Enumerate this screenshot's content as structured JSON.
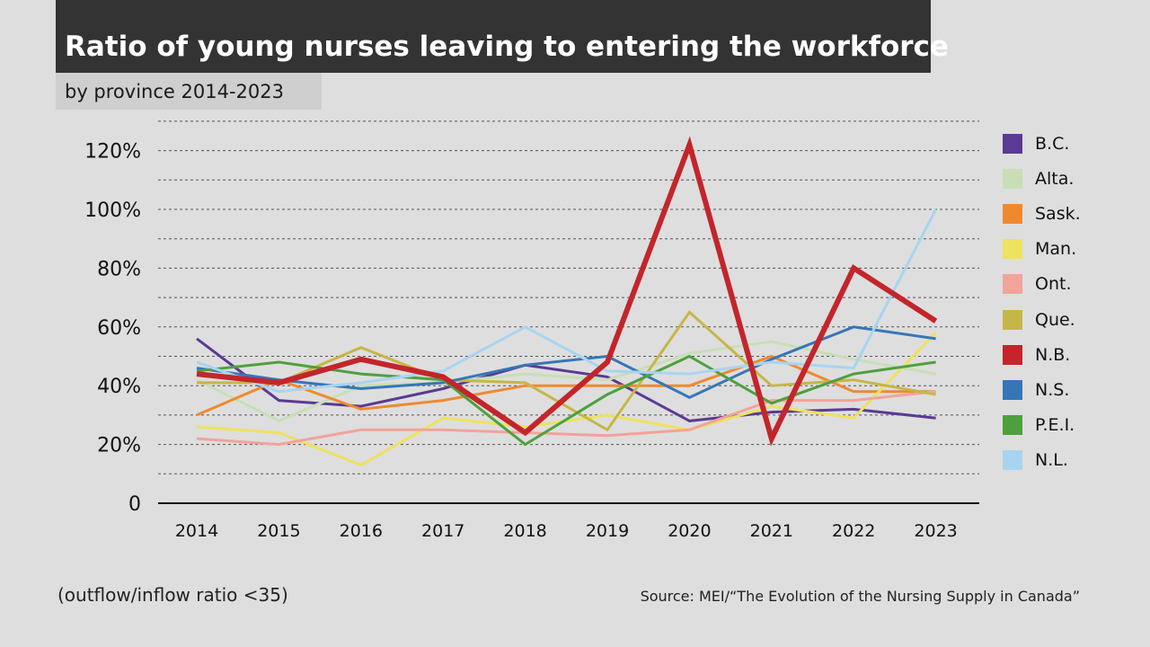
{
  "header": {
    "title": "Ratio of young nurses leaving to entering the workforce",
    "subtitle": "by province 2014-2023"
  },
  "footer": {
    "note": "(outflow/inflow ratio <35)",
    "source": "Source: MEI/“The Evolution of the Nursing Supply in Canada”"
  },
  "chart_data": {
    "type": "line",
    "title": "Ratio of young nurses leaving to entering the workforce",
    "subtitle": "by province 2014-2023",
    "x": [
      "2014",
      "2015",
      "2016",
      "2017",
      "2018",
      "2019",
      "2020",
      "2021",
      "2022",
      "2023"
    ],
    "ylim": [
      0,
      130
    ],
    "yticks": [
      0,
      20,
      40,
      60,
      80,
      100,
      120
    ],
    "ytick_labels": [
      "0",
      "20%",
      "40%",
      "60%",
      "80%",
      "100%",
      "120%"
    ],
    "grid": true,
    "legend": "right",
    "series": [
      {
        "name": "B.C.",
        "color": "#5b3a93",
        "values": [
          56,
          35,
          33,
          39,
          47,
          43,
          28,
          31,
          32,
          29
        ]
      },
      {
        "name": "Alta.",
        "color": "#c8dfb5",
        "values": [
          42,
          28,
          40,
          41,
          44,
          42,
          51,
          55,
          49,
          44
        ]
      },
      {
        "name": "Sask.",
        "color": "#f0892e",
        "values": [
          30,
          42,
          32,
          35,
          40,
          40,
          40,
          50,
          38,
          38
        ]
      },
      {
        "name": "Man.",
        "color": "#eee25e",
        "values": [
          26,
          24,
          13,
          29,
          26,
          30,
          25,
          33,
          29,
          58
        ]
      },
      {
        "name": "Ont.",
        "color": "#f2a39a",
        "values": [
          22,
          20,
          25,
          25,
          24,
          23,
          25,
          35,
          35,
          38
        ]
      },
      {
        "name": "Que.",
        "color": "#c6b648",
        "values": [
          41,
          41,
          53,
          42,
          41,
          25,
          65,
          40,
          42,
          37
        ]
      },
      {
        "name": "N.B.",
        "color": "#c3252b",
        "values": [
          44,
          41,
          49,
          43,
          24,
          48,
          122,
          22,
          80,
          62
        ]
      },
      {
        "name": "N.S.",
        "color": "#3676b8",
        "values": [
          46,
          42,
          39,
          41,
          47,
          50,
          36,
          49,
          60,
          56
        ]
      },
      {
        "name": "P.E.I.",
        "color": "#4ea03e",
        "values": [
          45,
          48,
          44,
          42,
          20,
          37,
          50,
          34,
          44,
          48
        ]
      },
      {
        "name": "N.L.",
        "color": "#a8d4f0",
        "values": [
          48,
          38,
          41,
          45,
          60,
          45,
          44,
          48,
          46,
          100
        ]
      }
    ]
  }
}
